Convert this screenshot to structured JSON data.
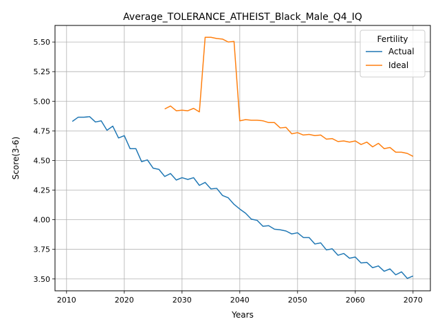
{
  "chart_data": {
    "type": "line",
    "title": "Average_TOLERANCE_ATHEIST_Black_Male_Q4_IQ",
    "xlabel": "Years",
    "ylabel": "Score(3-6)",
    "xlim": [
      2008,
      2073
    ],
    "ylim": [
      3.4,
      5.64
    ],
    "xticks": [
      2010,
      2020,
      2030,
      2040,
      2050,
      2060,
      2070
    ],
    "yticks": [
      3.5,
      3.75,
      4.0,
      4.25,
      4.5,
      4.75,
      5.0,
      5.25,
      5.5
    ],
    "yticklabels": [
      "3.50",
      "3.75",
      "4.00",
      "4.25",
      "4.50",
      "4.75",
      "5.00",
      "5.25",
      "5.50"
    ],
    "grid": true,
    "legend": {
      "title": "Fertility",
      "position": "top-right"
    },
    "series": [
      {
        "name": "Actual",
        "color": "#1f77b4",
        "x": [
          2011,
          2012,
          2013,
          2014,
          2015,
          2016,
          2017,
          2018,
          2019,
          2020,
          2021,
          2022,
          2023,
          2024,
          2025,
          2026,
          2027,
          2028,
          2029,
          2030,
          2031,
          2032,
          2033,
          2034,
          2035,
          2036,
          2037,
          2038,
          2039,
          2040,
          2041,
          2042,
          2043,
          2044,
          2045,
          2046,
          2047,
          2048,
          2049,
          2050,
          2051,
          2052,
          2053,
          2054,
          2055,
          2056,
          2057,
          2058,
          2059,
          2060,
          2061,
          2062,
          2063,
          2064,
          2065,
          2066,
          2067,
          2068,
          2069,
          2070
        ],
        "y": [
          4.83,
          4.865,
          4.865,
          4.87,
          4.825,
          4.835,
          4.755,
          4.79,
          4.69,
          4.71,
          4.6,
          4.6,
          4.49,
          4.505,
          4.435,
          4.425,
          4.365,
          4.39,
          4.335,
          4.355,
          4.34,
          4.355,
          4.29,
          4.315,
          4.26,
          4.265,
          4.205,
          4.185,
          4.13,
          4.09,
          4.055,
          4.005,
          3.995,
          3.945,
          3.95,
          3.92,
          3.915,
          3.905,
          3.88,
          3.89,
          3.85,
          3.85,
          3.795,
          3.805,
          3.745,
          3.755,
          3.7,
          3.715,
          3.675,
          3.685,
          3.635,
          3.64,
          3.595,
          3.61,
          3.565,
          3.585,
          3.535,
          3.56,
          3.505,
          3.525
        ]
      },
      {
        "name": "Ideal",
        "color": "#ff7f0e",
        "x": [
          2027,
          2028,
          2029,
          2030,
          2031,
          2032,
          2033,
          2034,
          2035,
          2036,
          2037,
          2038,
          2039,
          2040,
          2041,
          2042,
          2043,
          2044,
          2045,
          2046,
          2047,
          2048,
          2049,
          2050,
          2051,
          2052,
          2053,
          2054,
          2055,
          2056,
          2057,
          2058,
          2059,
          2060,
          2061,
          2062,
          2063,
          2064,
          2065,
          2066,
          2067,
          2068,
          2069,
          2070
        ],
        "y": [
          4.935,
          4.96,
          4.92,
          4.925,
          4.92,
          4.94,
          4.91,
          5.54,
          5.54,
          5.53,
          5.525,
          5.5,
          5.505,
          4.835,
          4.845,
          4.84,
          4.84,
          4.835,
          4.82,
          4.82,
          4.775,
          4.78,
          4.725,
          4.735,
          4.715,
          4.72,
          4.71,
          4.715,
          4.68,
          4.685,
          4.66,
          4.665,
          4.655,
          4.665,
          4.635,
          4.655,
          4.615,
          4.645,
          4.6,
          4.61,
          4.57,
          4.57,
          4.56,
          4.535
        ]
      }
    ]
  }
}
